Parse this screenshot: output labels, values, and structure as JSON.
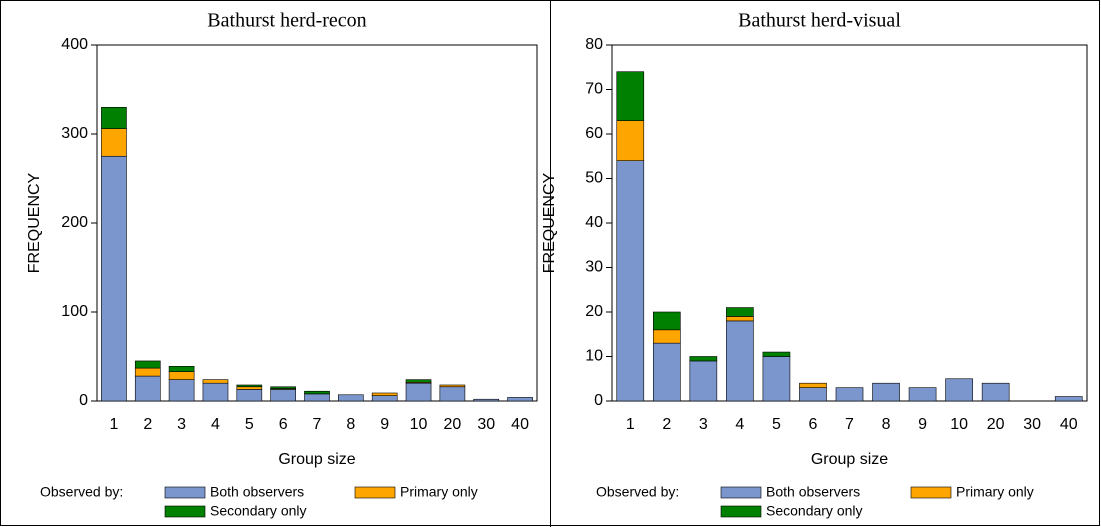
{
  "chart_data": [
    {
      "type": "bar",
      "stacked": true,
      "title": "Bathurst herd-recon",
      "x_label": "Group size",
      "y_label": "FREQUENCY",
      "categories": [
        "1",
        "2",
        "3",
        "4",
        "5",
        "6",
        "7",
        "8",
        "9",
        "10",
        "20",
        "30",
        "40"
      ],
      "series": [
        {
          "name": "Both observers",
          "color": "#7b96cc",
          "values": [
            275,
            28,
            24,
            20,
            13,
            13,
            8,
            7,
            6,
            20,
            16,
            2,
            4
          ]
        },
        {
          "name": "Primary only",
          "color": "#ffa500",
          "values": [
            31,
            9,
            9,
            4,
            3,
            1,
            0,
            0,
            3,
            1,
            2,
            0,
            0
          ]
        },
        {
          "name": "Secondary only",
          "color": "#008000",
          "values": [
            24,
            8,
            6,
            0,
            2,
            2,
            3,
            0,
            0,
            3,
            0,
            0,
            0
          ]
        }
      ],
      "ylim": [
        0,
        400
      ],
      "yticks": [
        0,
        100,
        200,
        300,
        400
      ],
      "legend_title": "Observed by:"
    },
    {
      "type": "bar",
      "stacked": true,
      "title": "Bathurst herd-visual",
      "x_label": "Group size",
      "y_label": "FREQUENCY",
      "categories": [
        "1",
        "2",
        "3",
        "4",
        "5",
        "6",
        "7",
        "8",
        "9",
        "10",
        "20",
        "30",
        "40"
      ],
      "series": [
        {
          "name": "Both observers",
          "color": "#7b96cc",
          "values": [
            54,
            13,
            9,
            18,
            10,
            3,
            3,
            4,
            3,
            5,
            4,
            0,
            1
          ]
        },
        {
          "name": "Primary only",
          "color": "#ffa500",
          "values": [
            9,
            3,
            0,
            1,
            0,
            1,
            0,
            0,
            0,
            0,
            0,
            0,
            0
          ]
        },
        {
          "name": "Secondary only",
          "color": "#008000",
          "values": [
            11,
            4,
            1,
            2,
            1,
            0,
            0,
            0,
            0,
            0,
            0,
            0,
            0
          ]
        }
      ],
      "ylim": [
        0,
        80
      ],
      "yticks": [
        0,
        10,
        20,
        30,
        40,
        50,
        60,
        70,
        80
      ],
      "legend_title": "Observed by:"
    }
  ]
}
